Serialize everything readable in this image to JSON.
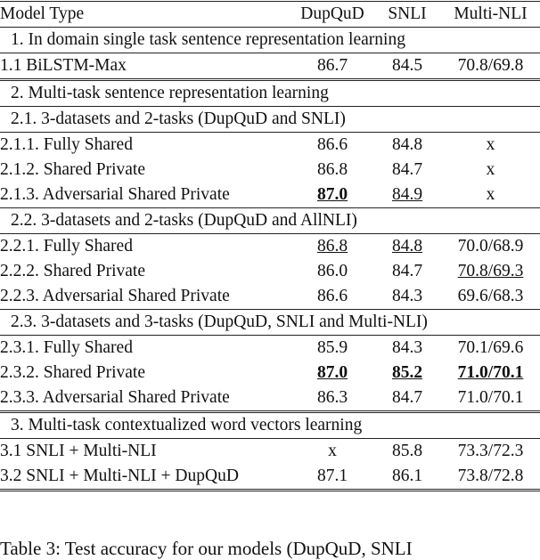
{
  "table": {
    "header": [
      "Model Type",
      "DupQuD",
      "SNLI",
      "Multi-NLI"
    ],
    "sections": [
      {
        "title": "1. In domain single task sentence representation learning",
        "rows": [
          {
            "cells": [
              "1.1 BiLSTM-Max",
              "86.7",
              "84.5",
              "70.8/69.8"
            ]
          }
        ]
      },
      {
        "title": "2. Multi-task sentence representation learning",
        "subsections": [
          {
            "title": "2.1. 3-datasets and 2-tasks (DupQuD and SNLI)",
            "rows": [
              {
                "cells": [
                  "2.1.1. Fully Shared",
                  "86.6",
                  "84.8",
                  "x"
                ]
              },
              {
                "cells": [
                  "2.1.2. Shared Private",
                  "86.8",
                  "84.7",
                  "x"
                ]
              },
              {
                "cells": [
                  "2.1.3. Adversarial Shared Private",
                  "87.0",
                  "84.9",
                  "x"
                ],
                "bold": [
                  1
                ],
                "underline": [
                  1,
                  2
                ]
              }
            ]
          },
          {
            "title": "2.2. 3-datasets and 2-tasks (DupQuD and AllNLI)",
            "rows": [
              {
                "cells": [
                  "2.2.1. Fully Shared",
                  "86.8",
                  "84.8",
                  "70.0/68.9"
                ],
                "underline": [
                  1,
                  2
                ]
              },
              {
                "cells": [
                  "2.2.2. Shared Private",
                  "86.0",
                  "84.7",
                  "70.8/69.3"
                ],
                "underline": [
                  3
                ]
              },
              {
                "cells": [
                  "2.2.3. Adversarial Shared Private",
                  "86.6",
                  "84.3",
                  "69.6/68.3"
                ]
              }
            ]
          },
          {
            "title": "2.3. 3-datasets and 3-tasks (DupQuD, SNLI and Multi-NLI)",
            "rows": [
              {
                "cells": [
                  "2.3.1. Fully Shared",
                  "85.9",
                  "84.3",
                  "70.1/69.6"
                ]
              },
              {
                "cells": [
                  "2.3.2. Shared Private",
                  "87.0",
                  "85.2",
                  "71.0/70.1"
                ],
                "bold": [
                  1,
                  2,
                  3
                ],
                "underline": [
                  1,
                  2,
                  3
                ]
              },
              {
                "cells": [
                  "2.3.3. Adversarial Shared Private",
                  "86.3",
                  "84.7",
                  "71.0/70.1"
                ]
              }
            ]
          }
        ]
      },
      {
        "title": "3. Multi-task contextualized word vectors learning",
        "rows": [
          {
            "cells": [
              "3.1 SNLI + Multi-NLI",
              "x",
              "85.8",
              "73.3/72.3"
            ]
          },
          {
            "cells": [
              "3.2 SNLI + Multi-NLI + DupQuD",
              "87.1",
              "86.1",
              "73.8/72.8"
            ]
          }
        ]
      }
    ],
    "caption": "Table 3: Test accuracy for our models (DupQuD, SNLI"
  }
}
